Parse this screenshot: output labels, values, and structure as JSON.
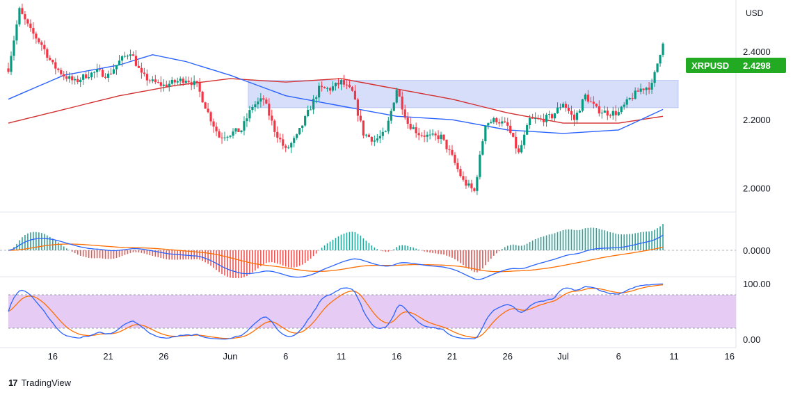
{
  "axis": {
    "currency": "USD",
    "price_ticks": [
      "2.4000",
      "2.2000",
      "2.0000"
    ],
    "macd_ticks": [
      "0.0000"
    ],
    "stoch_ticks": [
      "100.00",
      "0.00"
    ],
    "x_ticks": [
      "16",
      "21",
      "26",
      "Jun",
      "6",
      "11",
      "16",
      "21",
      "26",
      "Jul",
      "6",
      "11",
      "16"
    ]
  },
  "symbol_tag": {
    "symbol": "XRPUSD",
    "price": "2.4298",
    "color": "#22ab22"
  },
  "brand": {
    "logo": "17",
    "name": "TradingView"
  },
  "colors": {
    "up": "#089981",
    "down": "#f23645",
    "ma_fast": "#2962ff",
    "ma_slow": "#d32f2f",
    "zone": "#d7defa",
    "macd_line": "#2962ff",
    "signal_line": "#ff6d00",
    "stoch_k": "#2962ff",
    "stoch_d": "#ff6d00",
    "stoch_band": "#e6ccf5"
  },
  "chart_data": {
    "type": "candlestick",
    "symbol": "XRPUSD",
    "x_range": [
      "May 12",
      "Jul 18"
    ],
    "price_range": [
      1.93,
      2.55
    ],
    "macd_zero": 0,
    "stoch_levels": [
      80,
      20
    ],
    "stoch_range": [
      0,
      100
    ],
    "resistance_zone": {
      "low": 2.235,
      "high": 2.315,
      "from": "Jun 3",
      "to": "Jul 11"
    },
    "price_path": [
      [
        "May 12",
        2.35
      ],
      [
        "May 13",
        2.52
      ],
      [
        "May 14",
        2.46
      ],
      [
        "May 15",
        2.42
      ],
      [
        "May 16",
        2.36
      ],
      [
        "May 17",
        2.33
      ],
      [
        "May 18",
        2.31
      ],
      [
        "May 19",
        2.33
      ],
      [
        "May 20",
        2.34
      ],
      [
        "May 21",
        2.33
      ],
      [
        "May 22",
        2.37
      ],
      [
        "May 23",
        2.4
      ],
      [
        "May 24",
        2.33
      ],
      [
        "May 25",
        2.31
      ],
      [
        "May 26",
        2.3
      ],
      [
        "May 27",
        2.31
      ],
      [
        "May 28",
        2.32
      ],
      [
        "May 29",
        2.3
      ],
      [
        "May 30",
        2.22
      ],
      [
        "May 31",
        2.15
      ],
      [
        "Jun 1",
        2.16
      ],
      [
        "Jun 2",
        2.17
      ],
      [
        "Jun 3",
        2.24
      ],
      [
        "Jun 4",
        2.26
      ],
      [
        "Jun 5",
        2.17
      ],
      [
        "Jun 6",
        2.11
      ],
      [
        "Jun 7",
        2.15
      ],
      [
        "Jun 8",
        2.22
      ],
      [
        "Jun 9",
        2.29
      ],
      [
        "Jun 10",
        2.29
      ],
      [
        "Jun 11",
        2.31
      ],
      [
        "Jun 12",
        2.28
      ],
      [
        "Jun 13",
        2.16
      ],
      [
        "Jun 14",
        2.14
      ],
      [
        "Jun 15",
        2.16
      ],
      [
        "Jun 16",
        2.29
      ],
      [
        "Jun 17",
        2.19
      ],
      [
        "Jun 18",
        2.16
      ],
      [
        "Jun 19",
        2.15
      ],
      [
        "Jun 20",
        2.15
      ],
      [
        "Jun 21",
        2.09
      ],
      [
        "Jun 22",
        2.02
      ],
      [
        "Jun 23",
        1.99
      ],
      [
        "Jun 24",
        2.19
      ],
      [
        "Jun 25",
        2.2
      ],
      [
        "Jun 26",
        2.18
      ],
      [
        "Jun 27",
        2.1
      ],
      [
        "Jun 28",
        2.2
      ],
      [
        "Jun 29",
        2.2
      ],
      [
        "Jun 30",
        2.21
      ],
      [
        "Jul 1",
        2.25
      ],
      [
        "Jul 2",
        2.2
      ],
      [
        "Jul 3",
        2.27
      ],
      [
        "Jul 4",
        2.23
      ],
      [
        "Jul 5",
        2.22
      ],
      [
        "Jul 6",
        2.22
      ],
      [
        "Jul 7",
        2.26
      ],
      [
        "Jul 8",
        2.29
      ],
      [
        "Jul 9",
        2.3
      ],
      [
        "Jul 10",
        2.43
      ]
    ],
    "ma_fast_path": [
      [
        "May 12",
        2.26
      ],
      [
        "May 17",
        2.33
      ],
      [
        "May 22",
        2.36
      ],
      [
        "May 25",
        2.39
      ],
      [
        "May 28",
        2.37
      ],
      [
        "Jun 1",
        2.33
      ],
      [
        "Jun 6",
        2.27
      ],
      [
        "Jun 11",
        2.24
      ],
      [
        "Jun 16",
        2.21
      ],
      [
        "Jun 21",
        2.2
      ],
      [
        "Jun 26",
        2.17
      ],
      [
        "Jul 1",
        2.16
      ],
      [
        "Jul 6",
        2.17
      ],
      [
        "Jul 10",
        2.23
      ]
    ],
    "ma_slow_path": [
      [
        "May 12",
        2.19
      ],
      [
        "May 17",
        2.23
      ],
      [
        "May 22",
        2.27
      ],
      [
        "May 27",
        2.3
      ],
      [
        "Jun 1",
        2.32
      ],
      [
        "Jun 6",
        2.31
      ],
      [
        "Jun 11",
        2.32
      ],
      [
        "Jun 16",
        2.29
      ],
      [
        "Jun 21",
        2.26
      ],
      [
        "Jun 26",
        2.22
      ],
      [
        "Jul 1",
        2.19
      ],
      [
        "Jul 6",
        2.19
      ],
      [
        "Jul 10",
        2.21
      ]
    ]
  }
}
